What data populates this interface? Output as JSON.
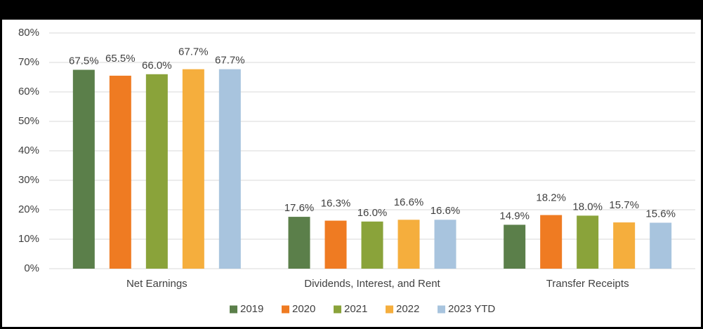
{
  "chart_data": {
    "type": "bar",
    "categories": [
      "Net Earnings",
      "Dividends, Interest, and Rent",
      "Transfer Receipts"
    ],
    "series": [
      {
        "name": "2019",
        "color": "#5b7f4a",
        "values": [
          67.5,
          17.6,
          14.9
        ],
        "value_labels": [
          "67.5%",
          "17.6%",
          "14.9%"
        ]
      },
      {
        "name": "2020",
        "color": "#ef7b22",
        "values": [
          65.5,
          16.3,
          18.2
        ],
        "value_labels": [
          "65.5%",
          "16.3%",
          "18.2%"
        ]
      },
      {
        "name": "2021",
        "color": "#8aa33a",
        "values": [
          66.0,
          16.0,
          18.0
        ],
        "value_labels": [
          "66.0%",
          "16.0%",
          "18.0%"
        ]
      },
      {
        "name": "2022",
        "color": "#f5ae3d",
        "values": [
          67.7,
          16.6,
          15.7
        ],
        "value_labels": [
          "67.7%",
          "16.6%",
          "15.7%"
        ]
      },
      {
        "name": "2023 YTD",
        "color": "#a8c4de",
        "values": [
          67.7,
          16.6,
          15.6
        ],
        "value_labels": [
          "67.7%",
          "16.6%",
          "15.6%"
        ]
      }
    ],
    "ylim": [
      0,
      80
    ],
    "yticks": [
      {
        "value": 0,
        "label": "0%"
      },
      {
        "value": 10,
        "label": "10%"
      },
      {
        "value": 20,
        "label": "20%"
      },
      {
        "value": 30,
        "label": "30%"
      },
      {
        "value": 40,
        "label": "40%"
      },
      {
        "value": 50,
        "label": "50%"
      },
      {
        "value": 60,
        "label": "60%"
      },
      {
        "value": 70,
        "label": "70%"
      },
      {
        "value": 80,
        "label": "80%"
      }
    ],
    "grid": true,
    "legend": "bottom"
  }
}
